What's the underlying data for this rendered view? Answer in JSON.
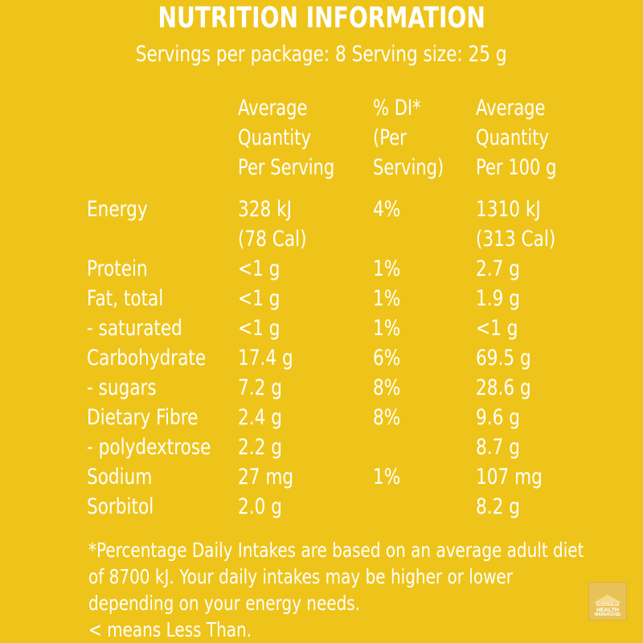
{
  "title": "NUTRITION INFORMATION",
  "subtitle": "Servings per package: 8   Serving size: 25 g",
  "headers": {
    "per_serving": [
      "Average",
      "Quantity",
      "Per Serving"
    ],
    "di": [
      "% DI*",
      "(Per",
      "Serving)"
    ],
    "per_100g": [
      "Average",
      "Quantity",
      "Per 100 g"
    ]
  },
  "rows": [
    {
      "name": "Energy",
      "serving": "328 kJ",
      "di": "4%",
      "per100": "1310 kJ"
    },
    {
      "name": "",
      "serving": "(78 Cal)",
      "di": "",
      "per100": "(313 Cal)"
    },
    {
      "name": "Protein",
      "serving": "<1 g",
      "di": "1%",
      "per100": "2.7 g"
    },
    {
      "name": "Fat, total",
      "serving": "<1 g",
      "di": "1%",
      "per100": "1.9 g"
    },
    {
      "name": "- saturated",
      "serving": "<1 g",
      "di": "1%",
      "per100": "<1 g"
    },
    {
      "name": "Carbohydrate",
      "serving": "17.4 g",
      "di": "6%",
      "per100": "69.5 g"
    },
    {
      "name": "- sugars",
      "serving": "7.2 g",
      "di": "8%",
      "per100": "28.6 g"
    },
    {
      "name": "Dietary Fibre",
      "serving": "2.4 g",
      "di": "8%",
      "per100": "9.6 g"
    },
    {
      "name": "- polydextrose",
      "serving": "2.2 g",
      "di": "",
      "per100": "8.7 g"
    },
    {
      "name": "Sodium",
      "serving": "27 mg",
      "di": "1%",
      "per100": "107 mg"
    },
    {
      "name": "Sorbitol",
      "serving": "2.0 g",
      "di": "",
      "per100": "8.2 g"
    }
  ],
  "footnote": [
    "*Percentage Daily Intakes are based on an average adult diet",
    "of 8700 kJ. Your daily intakes may be higher or lower",
    "depending on your energy needs.",
    "< means Less Than."
  ],
  "logo": {
    "line1": "AUSTRALIA",
    "line2": "HEALTH",
    "line3": "WAREHOUSE"
  },
  "colors": {
    "background": "#EEC41A",
    "text": "#FFFFFF"
  }
}
